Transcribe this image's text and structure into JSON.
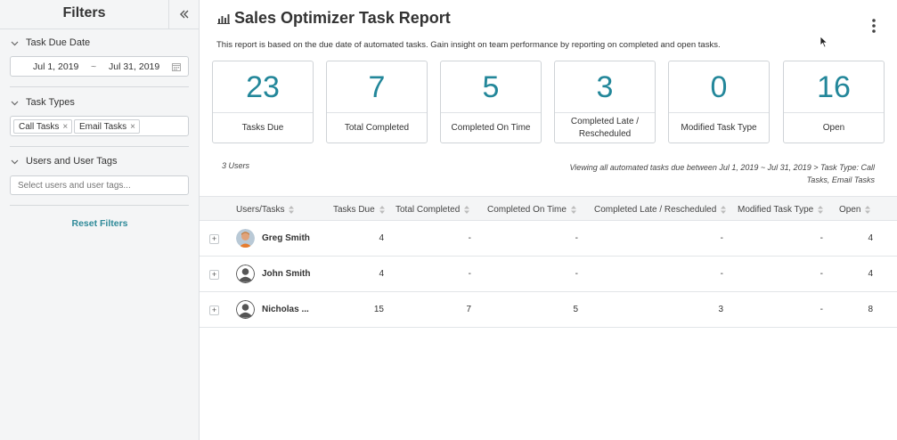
{
  "sidebar": {
    "title": "Filters",
    "sections": {
      "due_date": {
        "label": "Task Due Date",
        "start": "Jul 1, 2019",
        "separator": "~",
        "end": "Jul 31, 2019"
      },
      "task_types": {
        "label": "Task Types",
        "tags": [
          "Call Tasks",
          "Email Tasks"
        ]
      },
      "users": {
        "label": "Users and User Tags",
        "placeholder": "Select users and user tags..."
      }
    },
    "reset_label": "Reset Filters"
  },
  "main": {
    "title": "Sales Optimizer Task Report",
    "description": "This report is based on the due date of automated tasks. Gain insight on team performance by reporting on completed and open tasks.",
    "cards": [
      {
        "value": "23",
        "label": "Tasks Due"
      },
      {
        "value": "7",
        "label": "Total Completed"
      },
      {
        "value": "5",
        "label": "Completed On Time"
      },
      {
        "value": "3",
        "label": "Completed Late / Rescheduled"
      },
      {
        "value": "0",
        "label": "Modified Task Type"
      },
      {
        "value": "16",
        "label": "Open"
      }
    ],
    "users_count": "3 Users",
    "viewing_line1": "Viewing all automated tasks due between Jul 1, 2019 ~ Jul 31, 2019 > Task Type: Call",
    "viewing_line2": "Tasks, Email Tasks",
    "table": {
      "headers": [
        "Users/Tasks",
        "Tasks Due",
        "Total Completed",
        "Completed On Time",
        "Completed Late / Rescheduled",
        "Modified Task Type",
        "Open"
      ],
      "rows": [
        {
          "name": "Greg Smith",
          "avatar": "photo",
          "values": [
            "4",
            "-",
            "-",
            "-",
            "-",
            "4"
          ]
        },
        {
          "name": "John Smith",
          "avatar": "placeholder",
          "values": [
            "4",
            "-",
            "-",
            "-",
            "-",
            "4"
          ]
        },
        {
          "name": "Nicholas ...",
          "avatar": "placeholder",
          "values": [
            "15",
            "7",
            "5",
            "3",
            "-",
            "8"
          ]
        }
      ]
    }
  },
  "colors": {
    "accent": "#23879a",
    "link": "#2f8a99",
    "sidebar_bg": "#f4f5f6"
  },
  "icons": {
    "collapse": "double-chevron-left-icon",
    "section_toggle": "chevron-down-icon",
    "calendar": "calendar-icon",
    "tag_remove": "close-icon",
    "report": "bar-chart-icon",
    "menu": "kebab-menu-icon",
    "sort": "sort-icon",
    "expand": "plus-icon",
    "avatar": "user-avatar-icon"
  }
}
